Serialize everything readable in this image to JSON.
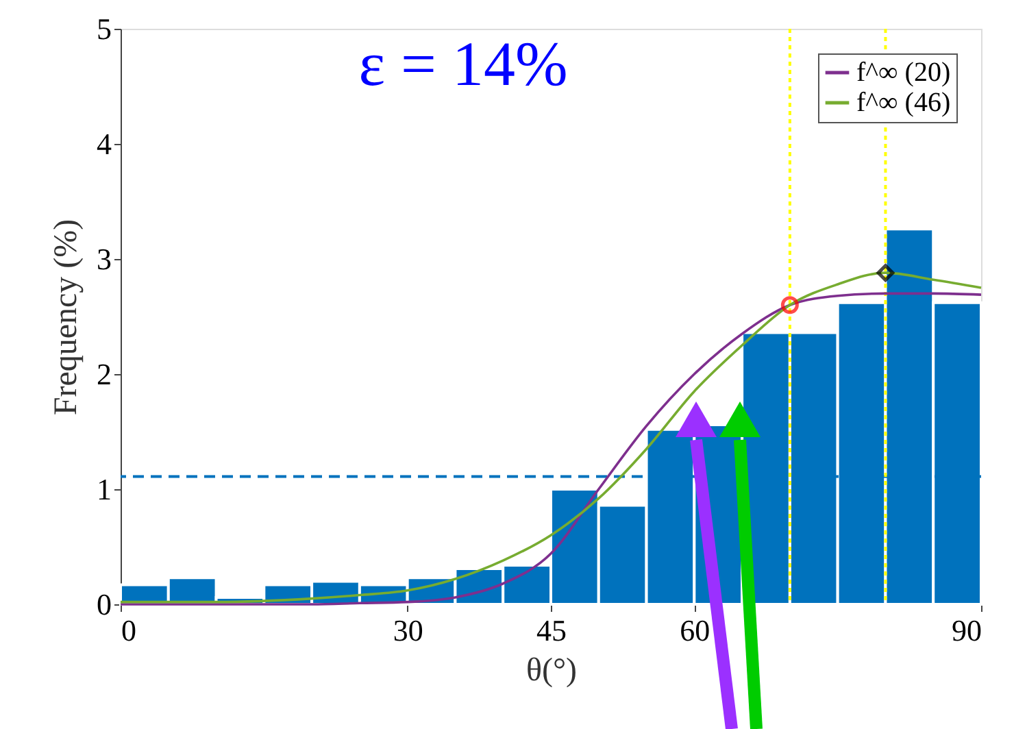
{
  "chart_data": {
    "type": "histogram",
    "bins": [
      0,
      5,
      10,
      15,
      20,
      25,
      30,
      35,
      40,
      45,
      50,
      55,
      60,
      65,
      70,
      75,
      80,
      85,
      90
    ],
    "values": [
      0.17,
      0.23,
      0.06,
      0.17,
      0.2,
      0.17,
      0.23,
      0.31,
      0.34,
      1.0,
      0.86,
      1.52,
      1.56,
      2.36,
      2.36,
      2.62,
      3.26,
      2.62
    ],
    "color": "#0072bd",
    "series": [
      {
        "type": "line",
        "name": "f^∞ (20)",
        "color": "#7e2f8e",
        "x": [
          0,
          10,
          20,
          25,
          30,
          35,
          40,
          45,
          50,
          55,
          60,
          65,
          70,
          75,
          80,
          85,
          90
        ],
        "values": [
          0,
          0,
          0,
          0.01,
          0.02,
          0.06,
          0.18,
          0.44,
          1.0,
          1.55,
          2.0,
          2.35,
          2.6,
          2.68,
          2.7,
          2.7,
          2.69
        ]
      },
      {
        "type": "line",
        "name": "f^∞ (46)",
        "color": "#77ac30",
        "x": [
          0,
          10,
          20,
          25,
          30,
          35,
          40,
          45,
          50,
          55,
          60,
          65,
          70,
          75,
          80,
          85,
          90
        ],
        "values": [
          0.02,
          0.02,
          0.05,
          0.08,
          0.12,
          0.22,
          0.38,
          0.6,
          0.92,
          1.35,
          1.85,
          2.25,
          2.6,
          2.78,
          2.88,
          2.82,
          2.75
        ]
      },
      {
        "type": "scatter",
        "marker": "circle",
        "color": "#ff0000",
        "x": [
          70
        ],
        "values": [
          2.6
        ]
      },
      {
        "type": "scatter",
        "marker": "diamond",
        "color": "#000000",
        "x": [
          80
        ],
        "values": [
          2.88
        ]
      }
    ],
    "ref_lines": [
      {
        "axis": "y",
        "value": 1.11,
        "color": "#0072bd",
        "line_style": "dashed"
      },
      {
        "axis": "x",
        "value": 70,
        "color": "#ffff00",
        "line_style": "dotted"
      },
      {
        "axis": "x",
        "value": 80,
        "color": "#ffff00",
        "line_style": "dotted"
      }
    ],
    "xlim": [
      0,
      90
    ],
    "xticks": [
      0,
      30,
      45,
      60,
      90
    ],
    "ylim": [
      0,
      5
    ],
    "yticks": [
      0,
      1,
      2,
      3,
      4,
      5
    ],
    "xlabel": "θ(°)",
    "ylabel": "Frequency (%)",
    "annotations": [
      "ε = 14%"
    ],
    "legend": "top right",
    "grid": false
  }
}
